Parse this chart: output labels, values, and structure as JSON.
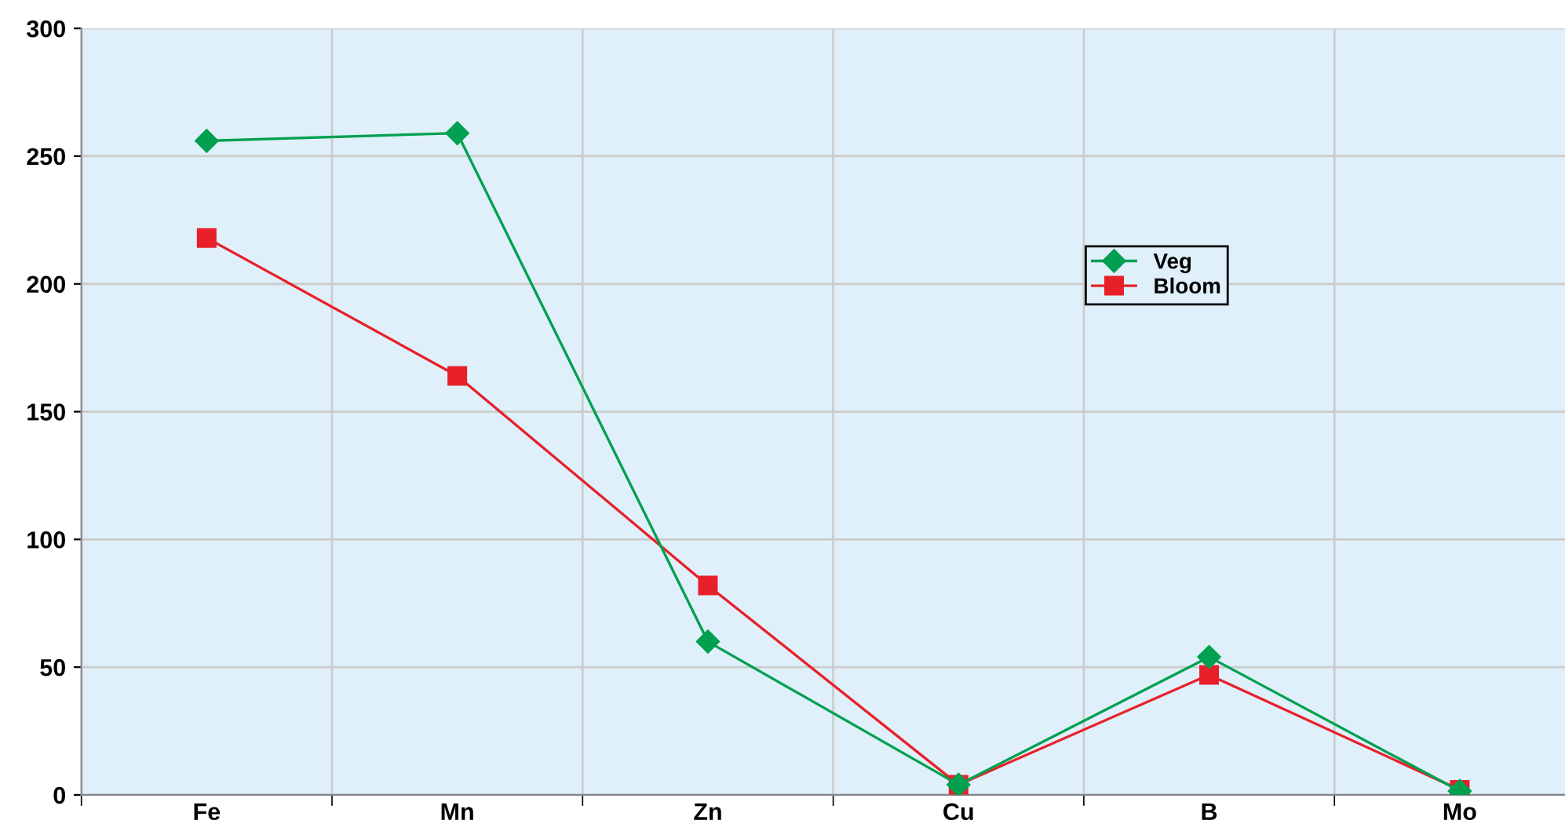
{
  "chart_data": {
    "type": "line",
    "categories": [
      "Fe",
      "Mn",
      "Zn",
      "Cu",
      "B",
      "Mo"
    ],
    "series": [
      {
        "name": "Veg",
        "color": "#00a050",
        "marker": "diamond",
        "values": [
          256,
          259,
          60,
          4,
          54,
          1.5
        ]
      },
      {
        "name": "Bloom",
        "color": "#e8202a",
        "marker": "square",
        "values": [
          218,
          164,
          82,
          4,
          47,
          2
        ]
      }
    ],
    "ylim": [
      0,
      300
    ],
    "yticks": [
      0,
      50,
      100,
      150,
      200,
      250,
      300
    ],
    "grid": true,
    "legend": "top right",
    "line_style": "solid"
  }
}
